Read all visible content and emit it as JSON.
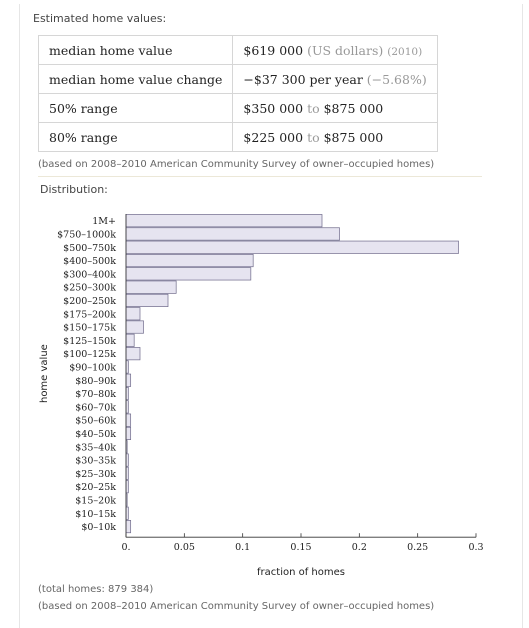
{
  "header": {
    "title": "Estimated home values:"
  },
  "values_table": [
    {
      "label": "median home value",
      "value": "$619 000",
      "unit": "(US dollars)",
      "extra": "(2010)"
    },
    {
      "label": "median home value change",
      "value": "−$37 300 per year",
      "unit": "",
      "extra": "(−5.68%)"
    },
    {
      "label": "50% range",
      "low": "$350 000",
      "to": "to",
      "high": "$875 000"
    },
    {
      "label": "80% range",
      "low": "$225 000",
      "to": "to",
      "high": "$875 000"
    }
  ],
  "source_note": "(based on 2008–2010 American Community Survey of owner–occupied homes)",
  "distribution": {
    "title": "Distribution:"
  },
  "footer": {
    "total_homes": "(total homes: 879 384)",
    "source_note": "(based on 2008–2010 American Community Survey of owner–occupied homes)"
  },
  "colors": {
    "bar_fill": "#e6e4f0",
    "bar_stroke": "#6e6a8a",
    "axis": "#333333"
  },
  "chart_data": {
    "type": "bar",
    "orientation": "horizontal",
    "categories": [
      "1M+",
      "$750–1000k",
      "$500–750k",
      "$400–500k",
      "$300–400k",
      "$250–300k",
      "$200–250k",
      "$175–200k",
      "$150–175k",
      "$125–150k",
      "$100–125k",
      "$90–100k",
      "$80–90k",
      "$70–80k",
      "$60–70k",
      "$50–60k",
      "$40–50k",
      "$35–40k",
      "$30–35k",
      "$25–30k",
      "$20–25k",
      "$15–20k",
      "$10–15k",
      "$0–10k"
    ],
    "values": [
      0.168,
      0.183,
      0.285,
      0.109,
      0.107,
      0.043,
      0.036,
      0.012,
      0.015,
      0.007,
      0.012,
      0.002,
      0.004,
      0.002,
      0.002,
      0.004,
      0.004,
      0.001,
      0.002,
      0.002,
      0.002,
      0.001,
      0.002,
      0.004
    ],
    "xlabel": "fraction of homes",
    "ylabel": "home value",
    "xlim": [
      0,
      0.3
    ],
    "xticks": [
      0,
      0.05,
      0.1,
      0.15,
      0.2,
      0.25,
      0.3
    ],
    "xtick_labels": [
      "0.",
      "0.05",
      "0.1",
      "0.15",
      "0.2",
      "0.25",
      "0.3"
    ],
    "grid": false
  }
}
